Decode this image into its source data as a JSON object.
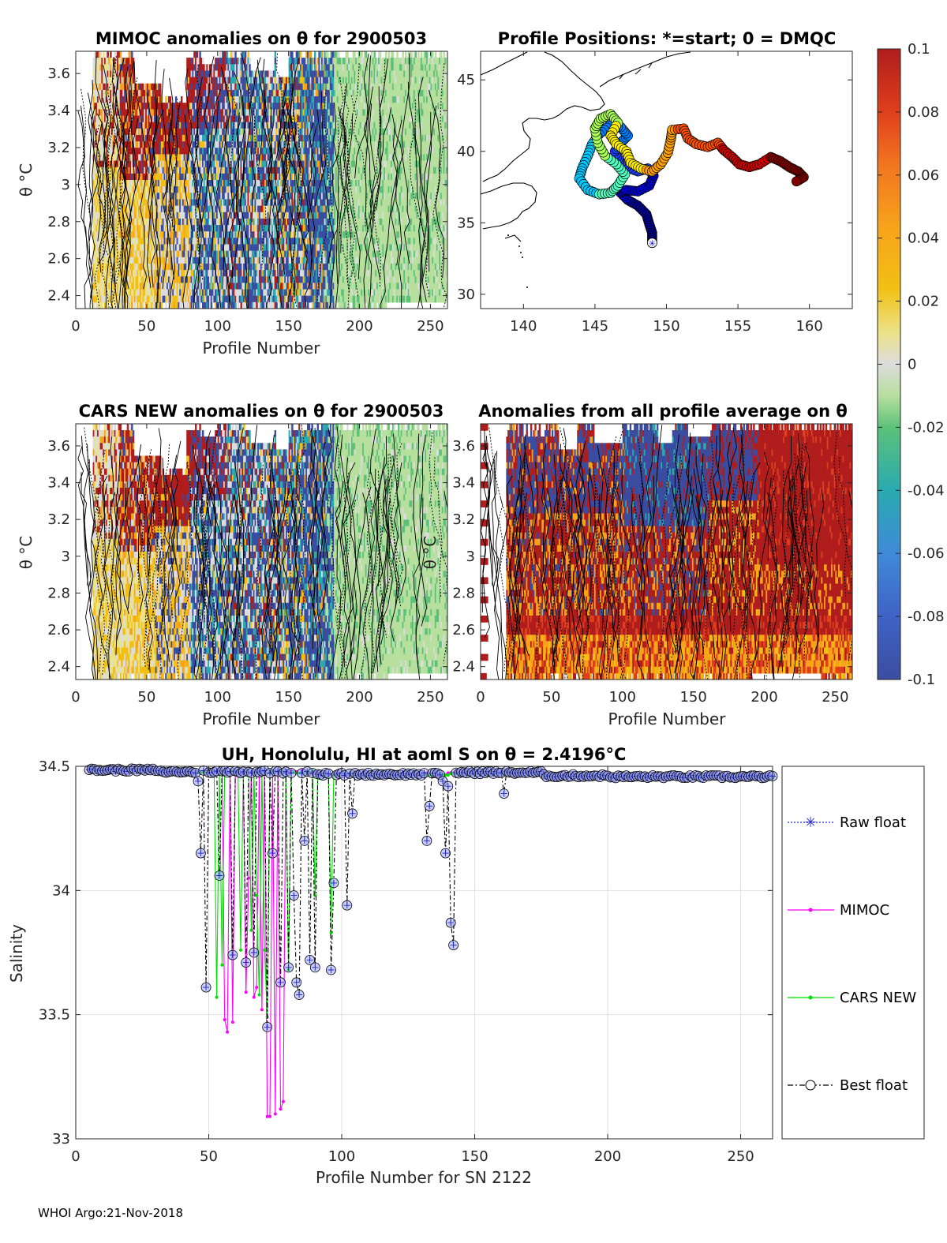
{
  "chart_data": [
    {
      "id": "mimoc",
      "type": "heatmap",
      "title": "MIMOC anomalies on θ  for 2900503",
      "xlabel": "Profile Number",
      "ylabel": "θ °C",
      "xlim": [
        0,
        262
      ],
      "ylim": [
        2.33,
        3.72
      ],
      "xticks": [
        "0",
        "50",
        "100",
        "150",
        "200",
        "250"
      ],
      "yticks": [
        "2.4",
        "2.6",
        "2.8",
        "3",
        "3.2",
        "3.4",
        "3.6"
      ],
      "contours": true
    },
    {
      "id": "positions",
      "type": "scatter",
      "title": "Profile Positions: *=start; 0 = DMQC",
      "xlim": [
        137,
        163
      ],
      "ylim": [
        29,
        47
      ],
      "xticks": [
        "140",
        "145",
        "150",
        "155",
        "160"
      ],
      "yticks": [
        "30",
        "35",
        "40",
        "45"
      ],
      "start_marker": [
        149,
        33.6
      ],
      "track": [
        [
          149,
          33.6
        ],
        [
          149,
          34.3
        ],
        [
          148.8,
          34.9
        ],
        [
          148.6,
          35.6
        ],
        [
          148,
          36.2
        ],
        [
          147.3,
          36.6
        ],
        [
          146.8,
          37.1
        ],
        [
          147.2,
          37.3
        ],
        [
          148,
          37.2
        ],
        [
          148.8,
          37.6
        ],
        [
          149.1,
          38.3
        ],
        [
          148.7,
          38.8
        ],
        [
          148,
          38.6
        ],
        [
          147.2,
          38.9
        ],
        [
          146.7,
          39.3
        ],
        [
          146.4,
          40
        ],
        [
          146.8,
          40.6
        ],
        [
          147.3,
          41.1
        ],
        [
          146.8,
          41.7
        ],
        [
          146,
          41.8
        ],
        [
          145.3,
          41.2
        ],
        [
          144.8,
          40.5
        ],
        [
          144.5,
          39.7
        ],
        [
          144.1,
          38.8
        ],
        [
          143.9,
          38.1
        ],
        [
          144.5,
          37.3
        ],
        [
          145.3,
          37
        ],
        [
          146.1,
          37.1
        ],
        [
          146.6,
          37.6
        ],
        [
          147.1,
          38.4
        ],
        [
          146.5,
          39.1
        ],
        [
          145.7,
          39.7
        ],
        [
          145.2,
          40.6
        ],
        [
          145,
          41.6
        ],
        [
          145.4,
          42.3
        ],
        [
          146.1,
          42.6
        ],
        [
          146.6,
          42
        ],
        [
          146.1,
          41.1
        ],
        [
          146.5,
          40.5
        ],
        [
          147.2,
          40
        ],
        [
          147.5,
          39.2
        ],
        [
          148.2,
          38.8
        ],
        [
          149,
          38.6
        ],
        [
          149.6,
          39.1
        ],
        [
          150.1,
          39.9
        ],
        [
          150.3,
          40.8
        ],
        [
          150.4,
          41.5
        ],
        [
          151.2,
          41.6
        ],
        [
          151.5,
          40.9
        ],
        [
          152.1,
          40.5
        ],
        [
          152.9,
          40.3
        ],
        [
          153.6,
          40.6
        ],
        [
          154,
          40.1
        ],
        [
          154.6,
          39.6
        ],
        [
          155.1,
          39.1
        ],
        [
          155.8,
          38.9
        ],
        [
          156.5,
          39.1
        ],
        [
          157.3,
          39.6
        ],
        [
          158,
          39.3
        ],
        [
          158.6,
          38.9
        ],
        [
          159.2,
          38.6
        ],
        [
          159.6,
          38.2
        ],
        [
          159.1,
          37.9
        ]
      ]
    },
    {
      "id": "colorbar",
      "type": "heatmap",
      "ticks": [
        "0.1",
        "0.08",
        "0.06",
        "0.04",
        "0.02",
        "0",
        "-0.02",
        "-0.04",
        "-0.06",
        "-0.08",
        "-0.1"
      ],
      "range": [
        -0.1,
        0.1
      ]
    },
    {
      "id": "cars",
      "type": "heatmap",
      "title": "CARS NEW anomalies on θ for 2900503",
      "xlabel": "Profile Number",
      "ylabel": "θ °C",
      "xlim": [
        0,
        262
      ],
      "ylim": [
        2.33,
        3.72
      ],
      "xticks": [
        "0",
        "50",
        "100",
        "150",
        "200",
        "250"
      ],
      "yticks": [
        "2.4",
        "2.6",
        "2.8",
        "3",
        "3.2",
        "3.4",
        "3.6"
      ],
      "contours": true
    },
    {
      "id": "allavg",
      "type": "heatmap",
      "title": "Anomalies from all profile average on θ",
      "xlabel": "Profile Number",
      "ylabel": "θ °C",
      "xlim": [
        0,
        262
      ],
      "ylim": [
        2.33,
        3.72
      ],
      "xticks": [
        "0",
        "50",
        "100",
        "150",
        "200",
        "250"
      ],
      "yticks": [
        "2.4",
        "2.6",
        "2.8",
        "3",
        "3.2",
        "3.4",
        "3.6"
      ],
      "contours": true
    },
    {
      "id": "salinity",
      "type": "line",
      "title": "UH, Honolulu, HI at aoml S on θ = 2.4196°C",
      "xlabel": "Profile Number for SN 2122",
      "ylabel": "Salinity",
      "xlim": [
        0,
        262
      ],
      "ylim": [
        33,
        34.5
      ],
      "xticks": [
        "0",
        "50",
        "100",
        "150",
        "200",
        "250"
      ],
      "yticks": [
        "33",
        "33.5",
        "34",
        "34.5"
      ],
      "grid": true,
      "legend": [
        "Raw float",
        "MIMOC",
        "CARS NEW",
        "Best float"
      ],
      "best_float_dips": [
        [
          46,
          34.44
        ],
        [
          47,
          34.15
        ],
        [
          49,
          33.61
        ],
        [
          54,
          34.06
        ],
        [
          59,
          33.74
        ],
        [
          64,
          33.71
        ],
        [
          67,
          33.75
        ],
        [
          72,
          33.45
        ],
        [
          74,
          34.15
        ],
        [
          77,
          33.63
        ],
        [
          80,
          33.69
        ],
        [
          82,
          33.98
        ],
        [
          83,
          33.63
        ],
        [
          84,
          33.58
        ],
        [
          86,
          34.2
        ],
        [
          88,
          33.72
        ],
        [
          90,
          33.69
        ],
        [
          96,
          33.68
        ],
        [
          97,
          34.03
        ],
        [
          102,
          33.94
        ],
        [
          104,
          34.31
        ],
        [
          132,
          34.2
        ],
        [
          133,
          34.34
        ],
        [
          138,
          34.44
        ],
        [
          138.5,
          34.15
        ],
        [
          140,
          34.42
        ],
        [
          141,
          33.87
        ],
        [
          142,
          33.78
        ],
        [
          161,
          34.39
        ]
      ],
      "mimoc_dips": [
        [
          56,
          33.48
        ],
        [
          57,
          33.43
        ],
        [
          59,
          33.47
        ],
        [
          65,
          34.05
        ],
        [
          64,
          33.59
        ],
        [
          67,
          33.57
        ],
        [
          68,
          33.61
        ],
        [
          70,
          33.52
        ],
        [
          72,
          33.09
        ],
        [
          73,
          33.09
        ],
        [
          75,
          33.1
        ],
        [
          77,
          33.12
        ],
        [
          78,
          33.15
        ]
      ],
      "cars_dips": [
        [
          53,
          33.57
        ],
        [
          55,
          33.7
        ],
        [
          62,
          33.76
        ],
        [
          66,
          33.84
        ],
        [
          68,
          33.98
        ],
        [
          69,
          33.58
        ],
        [
          71,
          33.76
        ],
        [
          72,
          33.49
        ],
        [
          80,
          33.68
        ],
        [
          90,
          33.98
        ],
        [
          96,
          33.83
        ]
      ]
    }
  ],
  "footer": "WHOI Argo:21-Nov-2018"
}
